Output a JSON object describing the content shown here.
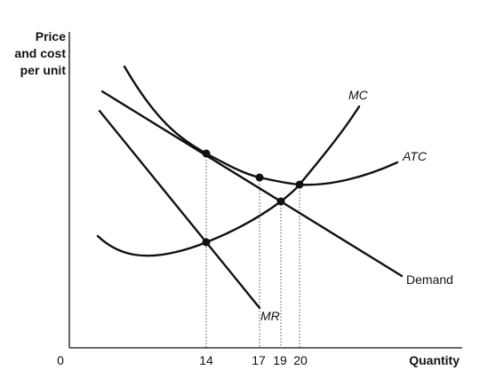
{
  "chart_data": {
    "type": "line",
    "title": "",
    "ylabel_lines": [
      "Price",
      "and cost",
      "per unit"
    ],
    "xlabel": "Quantity",
    "origin_label": "0",
    "xticks": [
      "14",
      "17",
      "19",
      "20"
    ],
    "curves": [
      {
        "name": "MC",
        "italic": true
      },
      {
        "name": "ATC",
        "italic": true
      },
      {
        "name": "Demand",
        "italic": false
      },
      {
        "name": "MR",
        "italic": true
      }
    ],
    "points": [
      {
        "name": "ATC-Demand tangency at 14",
        "x": 14
      },
      {
        "name": "MR=MC at 14",
        "x": 14
      },
      {
        "name": "ATC at 17",
        "x": 17
      },
      {
        "name": "MC=Demand at 19",
        "x": 19
      },
      {
        "name": "MC=ATC at 20",
        "x": 20
      }
    ],
    "grid": false
  }
}
